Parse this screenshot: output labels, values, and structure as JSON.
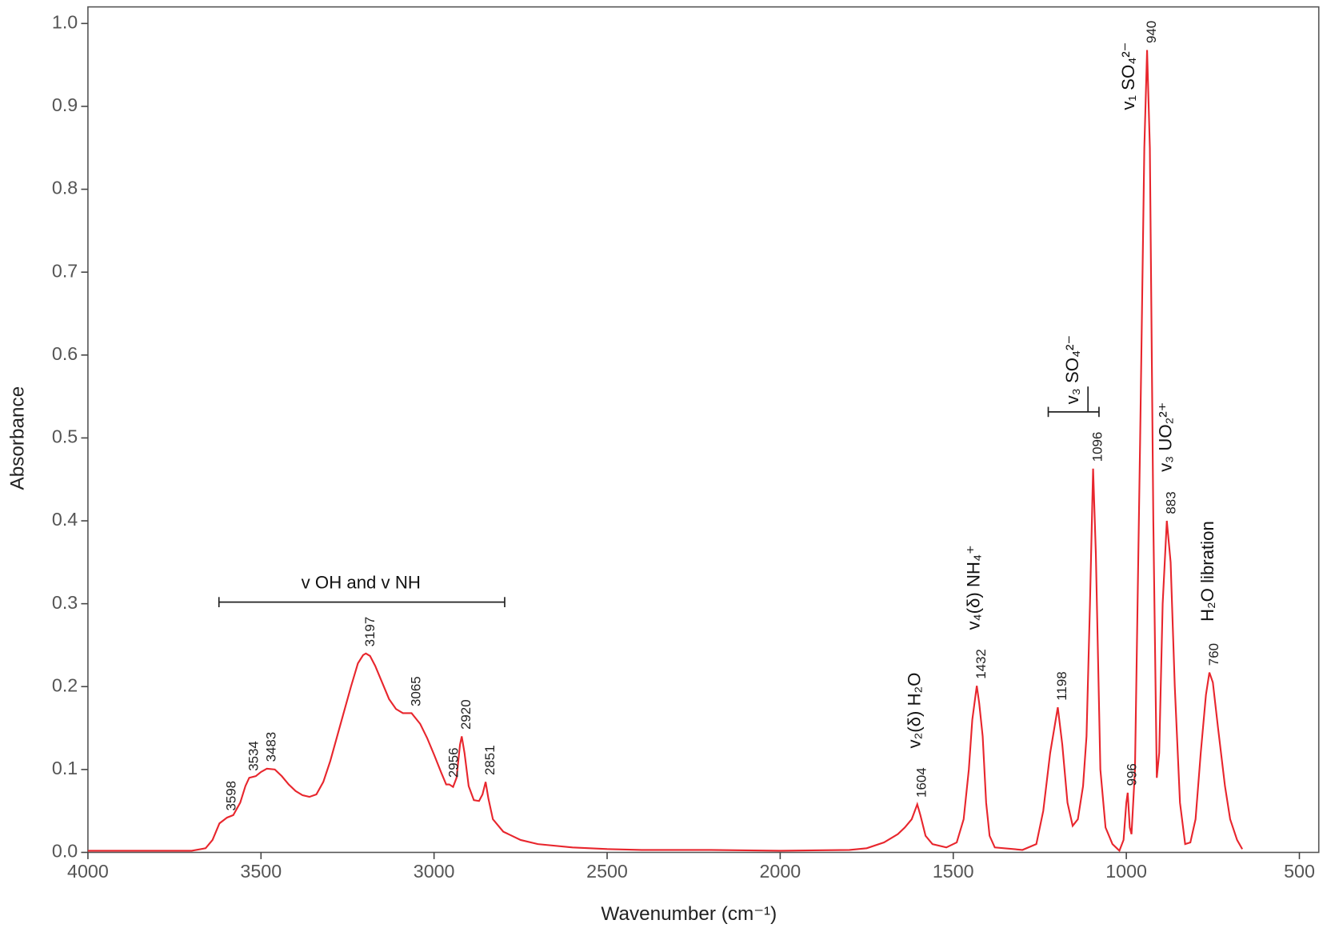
{
  "chart_data": {
    "type": "line",
    "xlabel": "Wavenumber (cm⁻¹)",
    "ylabel": "Absorbance",
    "color": "#e8262d",
    "xlim": [
      4000,
      444
    ],
    "ylim": [
      0,
      1.02
    ],
    "xticks": [
      4000,
      3500,
      3000,
      2500,
      2000,
      1500,
      1000,
      500
    ],
    "yticks": [
      {
        "value": 0,
        "label": "0.0"
      },
      0.1,
      0.2,
      0.3,
      0.4,
      0.5,
      0.6,
      0.7,
      0.8,
      0.9,
      {
        "value": 1,
        "label": "1.0"
      }
    ],
    "x": [
      4000,
      3700,
      3660,
      3640,
      3620,
      3598,
      3580,
      3560,
      3545,
      3534,
      3515,
      3500,
      3483,
      3460,
      3440,
      3420,
      3400,
      3380,
      3360,
      3340,
      3320,
      3300,
      3280,
      3260,
      3240,
      3220,
      3205,
      3197,
      3185,
      3170,
      3150,
      3130,
      3110,
      3090,
      3065,
      3040,
      3020,
      3000,
      2980,
      2965,
      2956,
      2945,
      2935,
      2925,
      2920,
      2912,
      2900,
      2885,
      2870,
      2860,
      2851,
      2843,
      2830,
      2800,
      2750,
      2700,
      2600,
      2500,
      2400,
      2200,
      2000,
      1800,
      1750,
      1700,
      1660,
      1640,
      1620,
      1604,
      1595,
      1580,
      1560,
      1520,
      1490,
      1470,
      1455,
      1445,
      1432,
      1425,
      1415,
      1405,
      1395,
      1380,
      1300,
      1260,
      1240,
      1220,
      1198,
      1185,
      1170,
      1155,
      1140,
      1125,
      1115,
      1105,
      1096,
      1088,
      1075,
      1060,
      1040,
      1020,
      1008,
      1000,
      996,
      990,
      985,
      975,
      960,
      948,
      940,
      932,
      922,
      912,
      905,
      895,
      883,
      872,
      860,
      845,
      830,
      815,
      800,
      785,
      770,
      760,
      750,
      735,
      715,
      700,
      680,
      665
    ],
    "values": [
      0.002,
      0.002,
      0.005,
      0.015,
      0.035,
      0.042,
      0.045,
      0.06,
      0.08,
      0.09,
      0.092,
      0.097,
      0.101,
      0.1,
      0.092,
      0.082,
      0.074,
      0.069,
      0.067,
      0.07,
      0.085,
      0.11,
      0.14,
      0.17,
      0.2,
      0.228,
      0.238,
      0.24,
      0.237,
      0.225,
      0.205,
      0.185,
      0.173,
      0.168,
      0.168,
      0.155,
      0.138,
      0.118,
      0.097,
      0.082,
      0.082,
      0.079,
      0.09,
      0.13,
      0.14,
      0.12,
      0.08,
      0.063,
      0.062,
      0.07,
      0.085,
      0.065,
      0.04,
      0.025,
      0.015,
      0.01,
      0.006,
      0.004,
      0.003,
      0.003,
      0.002,
      0.003,
      0.005,
      0.012,
      0.022,
      0.03,
      0.04,
      0.058,
      0.045,
      0.02,
      0.01,
      0.006,
      0.012,
      0.04,
      0.1,
      0.16,
      0.201,
      0.18,
      0.14,
      0.06,
      0.02,
      0.006,
      0.003,
      0.01,
      0.05,
      0.12,
      0.175,
      0.13,
      0.06,
      0.032,
      0.04,
      0.08,
      0.14,
      0.3,
      0.463,
      0.36,
      0.1,
      0.03,
      0.01,
      0.002,
      0.015,
      0.06,
      0.072,
      0.03,
      0.022,
      0.1,
      0.5,
      0.85,
      0.968,
      0.85,
      0.4,
      0.09,
      0.12,
      0.3,
      0.4,
      0.35,
      0.2,
      0.06,
      0.01,
      0.012,
      0.04,
      0.12,
      0.19,
      0.217,
      0.205,
      0.15,
      0.08,
      0.04,
      0.015,
      0.004
    ],
    "peaks": [
      3598,
      3534,
      3483,
      3197,
      3065,
      2956,
      2920,
      2851,
      1604,
      1432,
      1198,
      1096,
      996,
      940,
      883,
      760
    ],
    "annotations": [
      "v OH and v NH",
      "v₂(δ) H₂O",
      "v₄(δ) NH₄⁺",
      "v₃ SO₄²⁻",
      "v₁ SO₄²⁻",
      "v₃ UO₂²⁺",
      "H₂O libration"
    ]
  }
}
